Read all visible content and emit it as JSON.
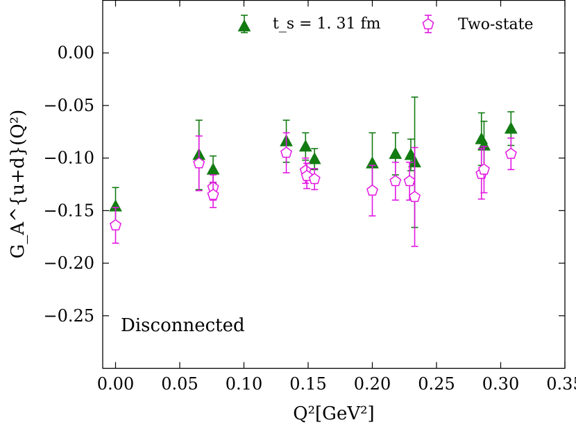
{
  "chart_data": {
    "type": "scatter",
    "xlabel": "Q²[GeV²]",
    "ylabel": "G_A^{u+d}(Q²)",
    "xlim": [
      -0.01,
      0.35
    ],
    "ylim": [
      -0.3,
      0.05
    ],
    "x_ticks": [
      0.0,
      0.05,
      0.1,
      0.15,
      0.2,
      0.25,
      0.3,
      0.35
    ],
    "x_tick_labels": [
      "0.00",
      "0.05",
      "0.10",
      "0.15",
      "0.20",
      "0.25",
      "0.30",
      "0.35"
    ],
    "y_ticks": [
      0.0,
      -0.05,
      -0.1,
      -0.15,
      -0.2,
      -0.25
    ],
    "y_tick_labels": [
      "0.00",
      "−0.05",
      "−0.10",
      "−0.15",
      "−0.20",
      "−0.25"
    ],
    "annotation": "Disconnected",
    "legend_position": "top",
    "series": [
      {
        "name": "t_s = 1. 31 fm",
        "marker": "triangle",
        "color": "#127b12",
        "x": [
          0.0,
          0.065,
          0.076,
          0.133,
          0.148,
          0.155,
          0.2,
          0.218,
          0.23,
          0.233,
          0.285,
          0.287,
          0.308
        ],
        "y": [
          -0.146,
          -0.097,
          -0.111,
          -0.084,
          -0.089,
          -0.101,
          -0.105,
          -0.096,
          -0.097,
          -0.104,
          -0.082,
          -0.088,
          -0.072
        ],
        "err": [
          0.018,
          0.033,
          0.013,
          0.02,
          0.013,
          0.01,
          0.029,
          0.02,
          0.015,
          0.062,
          0.025,
          0.023,
          0.016
        ]
      },
      {
        "name": "Two-state",
        "marker": "pentagon",
        "color": "#e317e3",
        "x": [
          0.0,
          0.065,
          0.076,
          0.076,
          0.133,
          0.148,
          0.149,
          0.155,
          0.2,
          0.218,
          0.229,
          0.233,
          0.285,
          0.287,
          0.308
        ],
        "y": [
          -0.164,
          -0.105,
          -0.128,
          -0.135,
          -0.095,
          -0.112,
          -0.117,
          -0.12,
          -0.131,
          -0.122,
          -0.122,
          -0.137,
          -0.115,
          -0.111,
          -0.096
        ],
        "err": [
          0.017,
          0.026,
          0.012,
          0.012,
          0.019,
          0.012,
          0.012,
          0.01,
          0.024,
          0.018,
          0.018,
          0.047,
          0.024,
          0.022,
          0.015
        ]
      }
    ]
  }
}
